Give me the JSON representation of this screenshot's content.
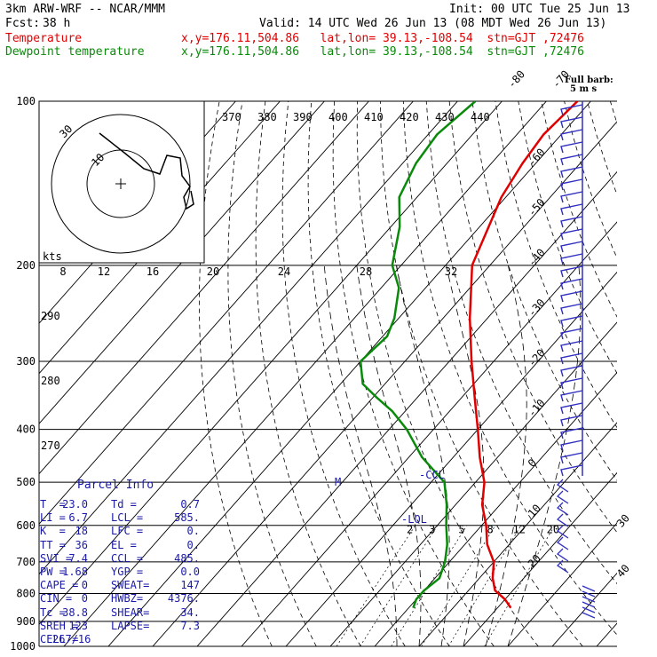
{
  "header": {
    "model": "3km ARW-WRF -- NCAR/MMM",
    "init": "Init: 00 UTC Tue 25 Jun 13",
    "fcst_label": "Fcst:",
    "fcst_value": "38 h",
    "valid": "Valid: 14 UTC Wed 26 Jun 13 (08 MDT Wed 26 Jun 13)",
    "temp_label": "Temperature",
    "temp_loc": "x,y=176.11,504.86   lat,lon= 39.13,-108.54  stn=GJT ,72476",
    "dew_label": "Dewpoint temperature",
    "dew_loc": "x,y=176.11,504.86   lat,lon= 39.13,-108.54  stn=GJT ,72476"
  },
  "barb_legend": {
    "line1": "Full barb:",
    "line2": "5 m s"
  },
  "colors": {
    "temperature": "#e00000",
    "dewpoint": "#0a8a0a",
    "parcel_text": "#1a1aa8",
    "barbs": "#3030c0"
  },
  "parcel": {
    "title": "Parcel Info",
    "rows": [
      [
        "T  =",
        "23.0",
        "Td =",
        "0.7"
      ],
      [
        "LI =",
        "6.7",
        "LCL =",
        "585."
      ],
      [
        "K  =",
        "18",
        "LFC =",
        "0."
      ],
      [
        "TT =",
        "36",
        "EL =",
        "0."
      ],
      [
        "SVI =",
        "7.4",
        "CCL =",
        "485."
      ],
      [
        "PW =",
        "1.68",
        "YGP =",
        "0.0"
      ],
      [
        "CAPE =",
        "0",
        "SWEAT=",
        "147"
      ],
      [
        "CIN =",
        "0",
        "HWBZ=",
        "4376."
      ],
      [
        "Tc =",
        "38.8",
        "SHEAR=",
        "34."
      ],
      [
        "SREH =",
        "123",
        "LAPSE=",
        "7.3"
      ],
      [
        "CELL =",
        "267/16",
        "",
        ""
      ]
    ]
  },
  "hodograph": {
    "kts_label": "kts",
    "speed_ticks": [
      "8",
      "12",
      "16",
      "20",
      "24",
      "28",
      "32"
    ],
    "ring_labels": [
      "30",
      "10"
    ]
  },
  "level_labels": {
    "ccl": "-CCL",
    "lol": "-LOL",
    "m": "M"
  },
  "chart_data": {
    "type": "line",
    "title": "",
    "y_axis": "Pressure (hPa), log scale",
    "pressure_ticks": [
      100,
      200,
      300,
      400,
      500,
      600,
      700,
      800,
      900,
      1000
    ],
    "ylim": [
      1000,
      100
    ],
    "isotherm_labels": [
      "-80",
      "-70",
      "-60",
      "-50",
      "-40",
      "-30",
      "-20",
      "-10",
      "0",
      "10",
      "20",
      "30",
      "40"
    ],
    "theta_labels": [
      "370",
      "380",
      "390",
      "400",
      "410",
      "420",
      "430",
      "440"
    ],
    "theta_side_labels": [
      "290",
      "280",
      "270"
    ],
    "mixing_ratio_labels": [
      "2",
      "3",
      "5",
      "8",
      "12",
      "20"
    ],
    "series": [
      {
        "name": "Temperature",
        "pressure": [
          850,
          820,
          790,
          750,
          700,
          650,
          600,
          550,
          500,
          450,
          400,
          350,
          300,
          250,
          200,
          150,
          130,
          115,
          100
        ],
        "values": [
          23,
          20,
          16,
          13,
          10,
          5,
          1,
          -4,
          -8,
          -14,
          -20,
          -27,
          -35,
          -44,
          -54,
          -61,
          -63,
          -64,
          -63
        ]
      },
      {
        "name": "Dewpoint temperature",
        "pressure": [
          850,
          820,
          790,
          750,
          700,
          650,
          600,
          550,
          500,
          450,
          400,
          370,
          350,
          330,
          300,
          270,
          250,
          220,
          200,
          170,
          150,
          130,
          115,
          100
        ],
        "values": [
          1,
          0,
          0,
          1,
          -1,
          -4,
          -8,
          -12,
          -17,
          -27,
          -36,
          -43,
          -49,
          -55,
          -60,
          -59,
          -61,
          -66,
          -72,
          -78,
          -84,
          -87,
          -88,
          -86
        ]
      }
    ]
  }
}
